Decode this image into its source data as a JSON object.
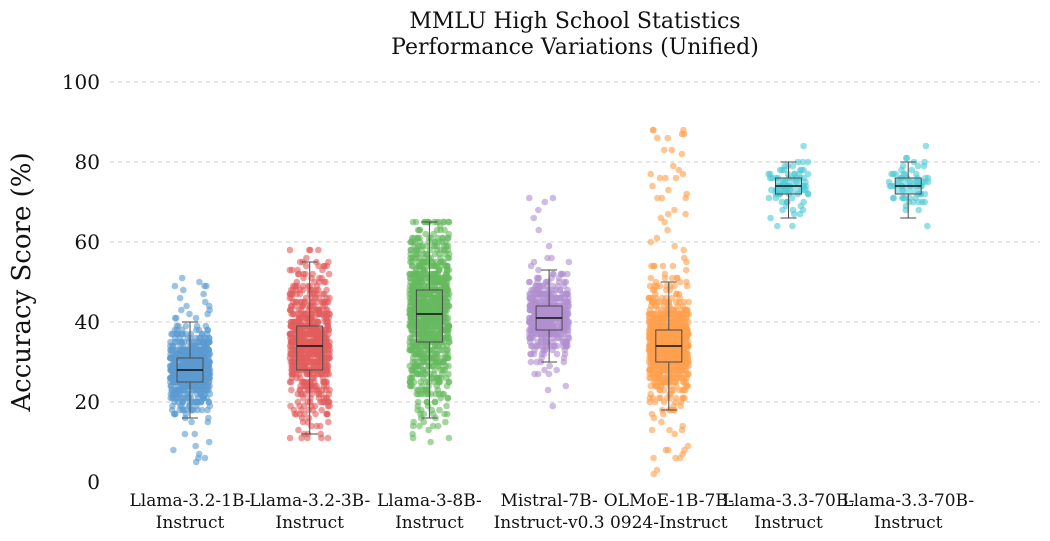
{
  "chart_data": {
    "type": "box",
    "title": [
      "MMLU High School Statistics",
      "Performance Variations (Unified)"
    ],
    "ylabel": "Accuracy Score (%)",
    "xlabel": "",
    "ylim": [
      0,
      100
    ],
    "yticks": [
      0,
      20,
      40,
      60,
      80,
      100
    ],
    "grid": "horizontal dashed",
    "categories": [
      [
        "Llama-3.2-1B-",
        "Instruct"
      ],
      [
        "Llama-3.2-3B-",
        "Instruct"
      ],
      [
        "Llama-3-8B-",
        "Instruct"
      ],
      [
        "Mistral-7B-",
        "Instruct-v0.3"
      ],
      [
        "OLMoE-1B-7B-",
        "0924-Instruct"
      ],
      [
        "Llama-3.3-70B-",
        "Instruct"
      ],
      [
        "Llama-3.3-70B-",
        "Instruct"
      ]
    ],
    "series": [
      {
        "color": "#5b9bd0",
        "min": 16,
        "q1": 25,
        "median": 28,
        "q3": 31,
        "max": 40,
        "pmin": 5,
        "pmax": 51,
        "n": 700
      },
      {
        "color": "#e35d5d",
        "min": 12,
        "q1": 28,
        "median": 34,
        "q3": 39,
        "max": 55,
        "pmin": 11,
        "pmax": 58,
        "n": 650
      },
      {
        "color": "#66b95f",
        "min": 16,
        "q1": 35,
        "median": 42,
        "q3": 48,
        "max": 65,
        "pmin": 10,
        "pmax": 65,
        "n": 900
      },
      {
        "color": "#b08fd0",
        "min": 30,
        "q1": 38,
        "median": 41,
        "q3": 44,
        "max": 53,
        "pmin": 19,
        "pmax": 71,
        "n": 500
      },
      {
        "color": "#ffa04e",
        "min": 18,
        "q1": 30,
        "median": 34,
        "q3": 38,
        "max": 50,
        "pmin": 2,
        "pmax": 88,
        "n": 900
      },
      {
        "color": "#4fc9d6",
        "min": 66,
        "q1": 72,
        "median": 74,
        "q3": 76,
        "max": 80,
        "pmin": 64,
        "pmax": 84,
        "n": 80
      },
      {
        "color": "#4fc9d6",
        "min": 66,
        "q1": 72,
        "median": 74,
        "q3": 76,
        "max": 80,
        "pmin": 64,
        "pmax": 84,
        "n": 60
      }
    ]
  }
}
